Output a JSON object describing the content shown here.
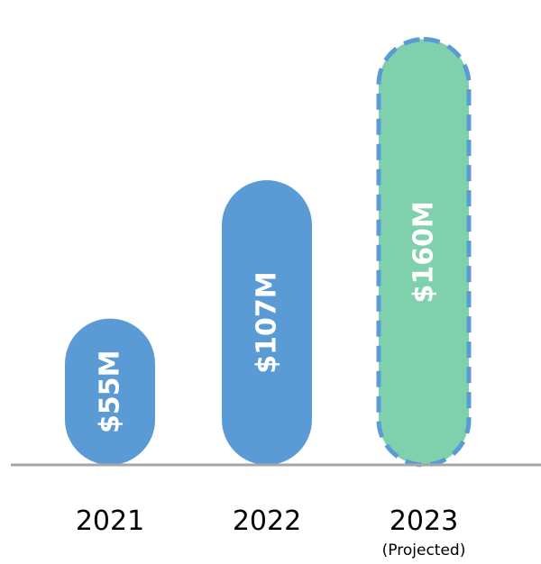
{
  "chart_data": {
    "type": "bar",
    "categories": [
      "2021",
      "2022",
      "2023"
    ],
    "category_sublabels": [
      "",
      "",
      "(Projected)"
    ],
    "values": [
      55,
      107,
      160
    ],
    "value_labels": [
      "$55M",
      "$107M",
      "$160M"
    ],
    "unit": "$M",
    "ylim": [
      0,
      170
    ],
    "grid": false,
    "legend": "none",
    "bar_colors": [
      "#5b9bd5",
      "#5b9bd5",
      "#7fd1ae"
    ],
    "projected": [
      false,
      false,
      true
    ],
    "projected_outline_color": "#5b9bd5",
    "axis_color": "#a6a6a6"
  }
}
